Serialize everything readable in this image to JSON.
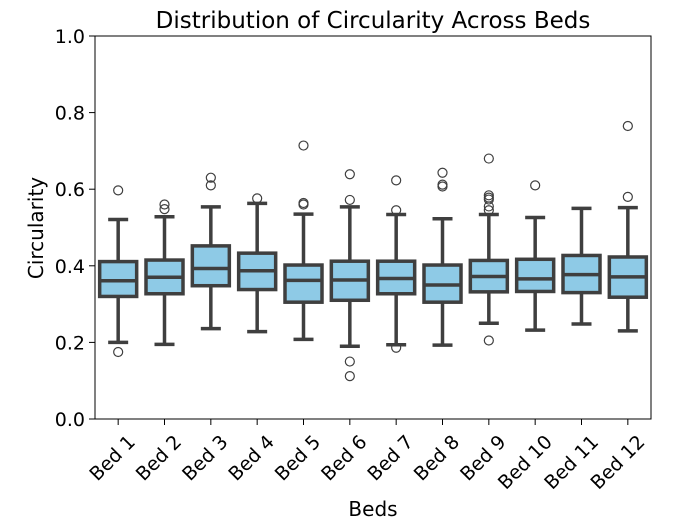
{
  "chart_data": {
    "type": "box",
    "title": "Distribution of Circularity Across Beds",
    "xlabel": "Beds",
    "ylabel": "Circularity",
    "ylim": [
      0,
      1.0
    ],
    "yticks": [
      "0.0",
      "0.2",
      "0.4",
      "0.6",
      "0.8",
      "1.0"
    ],
    "grid": false,
    "box_color": "#8ecae6",
    "edge_color": "#3f3f3f",
    "categories": [
      "Bed 1",
      "Bed 2",
      "Bed 3",
      "Bed 4",
      "Bed 5",
      "Bed 6",
      "Bed 7",
      "Bed 8",
      "Bed 9",
      "Bed 10",
      "Bed 11",
      "Bed 12"
    ],
    "boxes": [
      {
        "whisker_low": 0.2,
        "q1": 0.32,
        "median": 0.361,
        "q3": 0.411,
        "whisker_high": 0.521,
        "outliers": [
          0.597,
          0.175
        ]
      },
      {
        "whisker_low": 0.195,
        "q1": 0.327,
        "median": 0.37,
        "q3": 0.415,
        "whisker_high": 0.528,
        "outliers": [
          0.56,
          0.548
        ]
      },
      {
        "whisker_low": 0.236,
        "q1": 0.348,
        "median": 0.393,
        "q3": 0.452,
        "whisker_high": 0.554,
        "outliers": [
          0.63,
          0.61
        ]
      },
      {
        "whisker_low": 0.228,
        "q1": 0.338,
        "median": 0.387,
        "q3": 0.433,
        "whisker_high": 0.563,
        "outliers": [
          0.576
        ]
      },
      {
        "whisker_low": 0.208,
        "q1": 0.305,
        "median": 0.362,
        "q3": 0.402,
        "whisker_high": 0.535,
        "outliers": [
          0.714,
          0.564,
          0.56
        ]
      },
      {
        "whisker_low": 0.19,
        "q1": 0.31,
        "median": 0.363,
        "q3": 0.412,
        "whisker_high": 0.554,
        "outliers": [
          0.639,
          0.572,
          0.15,
          0.112
        ]
      },
      {
        "whisker_low": 0.194,
        "q1": 0.327,
        "median": 0.367,
        "q3": 0.412,
        "whisker_high": 0.534,
        "outliers": [
          0.623,
          0.545,
          0.186
        ]
      },
      {
        "whisker_low": 0.193,
        "q1": 0.305,
        "median": 0.35,
        "q3": 0.402,
        "whisker_high": 0.523,
        "outliers": [
          0.643,
          0.612,
          0.607
        ]
      },
      {
        "whisker_low": 0.25,
        "q1": 0.332,
        "median": 0.372,
        "q3": 0.414,
        "whisker_high": 0.534,
        "outliers": [
          0.68,
          0.584,
          0.578,
          0.573,
          0.555,
          0.545,
          0.205
        ]
      },
      {
        "whisker_low": 0.232,
        "q1": 0.333,
        "median": 0.366,
        "q3": 0.417,
        "whisker_high": 0.526,
        "outliers": [
          0.61
        ]
      },
      {
        "whisker_low": 0.248,
        "q1": 0.33,
        "median": 0.377,
        "q3": 0.427,
        "whisker_high": 0.55,
        "outliers": []
      },
      {
        "whisker_low": 0.23,
        "q1": 0.318,
        "median": 0.371,
        "q3": 0.423,
        "whisker_high": 0.552,
        "outliers": [
          0.765,
          0.58
        ]
      }
    ]
  }
}
